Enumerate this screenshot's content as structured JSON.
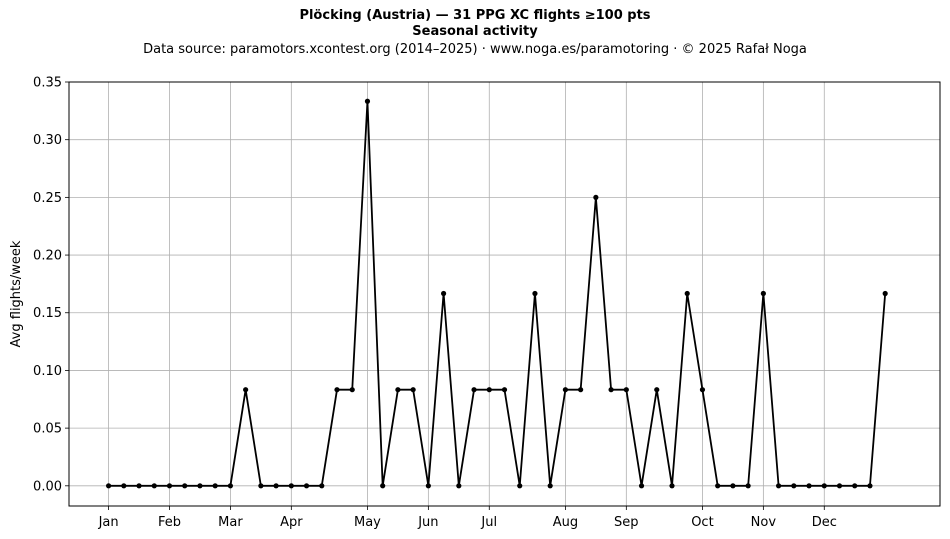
{
  "chart_data": {
    "type": "line",
    "title": "Plöcking (Austria)  —  31 PPG XC flights ≥100 pts",
    "subtitle": "Seasonal activity",
    "source": "Data source: paramotors.xcontest.org (2014–2025)  ·  www.noga.es/paramotoring  ·  © 2025 Rafał Noga",
    "xlabel": "",
    "ylabel": "Avg flights/week",
    "ylim": [
      -0.0175,
      0.35
    ],
    "xlim": [
      -2.6,
      54.6
    ],
    "yticks": [
      0.0,
      0.05,
      0.1,
      0.15,
      0.2,
      0.25,
      0.3,
      0.35
    ],
    "ytick_labels": [
      "0.00",
      "0.05",
      "0.10",
      "0.15",
      "0.20",
      "0.25",
      "0.30",
      "0.35"
    ],
    "xticks": [
      {
        "label": "Jan",
        "week": 0
      },
      {
        "label": "Feb",
        "week": 4
      },
      {
        "label": "Mar",
        "week": 8
      },
      {
        "label": "Apr",
        "week": 12
      },
      {
        "label": "May",
        "week": 17
      },
      {
        "label": "Jun",
        "week": 21
      },
      {
        "label": "Jul",
        "week": 25
      },
      {
        "label": "Aug",
        "week": 30
      },
      {
        "label": "Sep",
        "week": 34
      },
      {
        "label": "Oct",
        "week": 39
      },
      {
        "label": "Nov",
        "week": 43
      },
      {
        "label": "Dec",
        "week": 47
      }
    ],
    "grid": true,
    "legend": "none",
    "color": "#000000",
    "series": [
      {
        "x": [
          0,
          1,
          2,
          3,
          4,
          5,
          6,
          7,
          8,
          9,
          10,
          11,
          12,
          13,
          14,
          15,
          16,
          17,
          18,
          19,
          20,
          21,
          22,
          23,
          24,
          25,
          26,
          27,
          28,
          29,
          30,
          31,
          32,
          33,
          34,
          35,
          36,
          37,
          38,
          39,
          40,
          41,
          42,
          43,
          44,
          45,
          46,
          47,
          48,
          49,
          50,
          51
        ],
        "values": [
          0,
          0,
          0,
          0,
          0,
          0,
          0,
          0,
          0,
          0.0833,
          0,
          0,
          0,
          0,
          0,
          0.0833,
          0.0833,
          0.3333,
          0,
          0.0833,
          0.0833,
          0,
          0.1667,
          0,
          0.0833,
          0.0833,
          0.0833,
          0,
          0.1667,
          0,
          0.0833,
          0.0833,
          0.25,
          0.0833,
          0.0833,
          0,
          0.0833,
          0,
          0.1667,
          0.0833,
          0,
          0,
          0,
          0.1667,
          0,
          0,
          0,
          0,
          0,
          0,
          0,
          0.1667
        ]
      }
    ]
  }
}
